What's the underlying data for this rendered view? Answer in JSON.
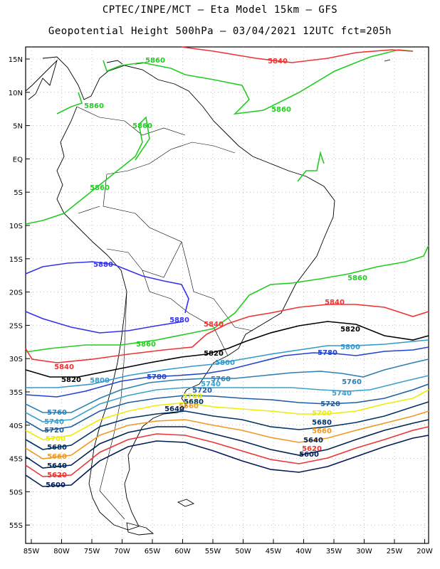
{
  "title_line1": "CPTEC/INPE/MCT –  Eta Model 15km – GFS",
  "title_line2": "Geopotential Height 500hPa – 03/04/2021 12UTC fct=205h",
  "lat_labels": [
    "15N",
    "10N",
    "5N",
    "EQ",
    "5S",
    "10S",
    "15S",
    "20S",
    "25S",
    "30S",
    "35S",
    "40S",
    "45S",
    "50S",
    "55S"
  ],
  "lon_labels": [
    "85W",
    "80W",
    "75W",
    "70W",
    "65W",
    "60W",
    "55W",
    "50W",
    "45W",
    "40W",
    "35W",
    "30W",
    "25W",
    "20W"
  ],
  "colors": {
    "5880": "#3333ee",
    "5860": "#22cc22",
    "5840": "#ee3333",
    "5820": "#000000",
    "5800": "#3399cc",
    "5780": "#2244cc",
    "5760": "#2f7fb3",
    "5740": "#3aa0cc",
    "5720": "#1f5fa0",
    "5700": "#eeee00",
    "5680": "#003366",
    "5660": "#ee9922",
    "5640": "#002255",
    "5620": "#ee3333",
    "5600": "#001a55",
    "coast": "#000000"
  },
  "contour_labels": [
    {
      "text": "5860",
      "color": "5860"
    },
    {
      "text": "5860",
      "color": "5860"
    },
    {
      "text": "5860",
      "color": "5860"
    },
    {
      "text": "5860",
      "color": "5860"
    },
    {
      "text": "5860",
      "color": "5860"
    },
    {
      "text": "5840",
      "color": "5840"
    },
    {
      "text": "5880",
      "color": "5880"
    },
    {
      "text": "5880",
      "color": "5880"
    },
    {
      "text": "5860",
      "color": "5860"
    },
    {
      "text": "5860",
      "color": "5860"
    },
    {
      "text": "5840",
      "color": "5840"
    },
    {
      "text": "5840",
      "color": "5840"
    },
    {
      "text": "5840",
      "color": "5840"
    },
    {
      "text": "5820",
      "color": "5820"
    },
    {
      "text": "5820",
      "color": "5820"
    },
    {
      "text": "5820",
      "color": "5820"
    },
    {
      "text": "5800",
      "color": "5800"
    },
    {
      "text": "5800",
      "color": "5800"
    },
    {
      "text": "5800",
      "color": "5800"
    },
    {
      "text": "5780",
      "color": "5780"
    },
    {
      "text": "5780",
      "color": "5780"
    },
    {
      "text": "5760",
      "color": "5760"
    },
    {
      "text": "5760",
      "color": "5760"
    },
    {
      "text": "5760",
      "color": "5760"
    },
    {
      "text": "5740",
      "color": "5740"
    },
    {
      "text": "5740",
      "color": "5740"
    },
    {
      "text": "5740",
      "color": "5740"
    },
    {
      "text": "5720",
      "color": "5720"
    },
    {
      "text": "5720",
      "color": "5720"
    },
    {
      "text": "5720",
      "color": "5720"
    },
    {
      "text": "5700",
      "color": "5700"
    },
    {
      "text": "5700",
      "color": "5700"
    },
    {
      "text": "5700",
      "color": "5700"
    },
    {
      "text": "5680",
      "color": "5680"
    },
    {
      "text": "5680",
      "color": "5680"
    },
    {
      "text": "5680",
      "color": "5680"
    },
    {
      "text": "5660",
      "color": "5660"
    },
    {
      "text": "5660",
      "color": "5660"
    },
    {
      "text": "5660",
      "color": "5660"
    },
    {
      "text": "5640",
      "color": "5640"
    },
    {
      "text": "5640",
      "color": "5640"
    },
    {
      "text": "5640",
      "color": "5640"
    },
    {
      "text": "5620",
      "color": "5620"
    },
    {
      "text": "5620",
      "color": "5620"
    },
    {
      "text": "5600",
      "color": "5600"
    },
    {
      "text": "5600",
      "color": "5600"
    }
  ]
}
